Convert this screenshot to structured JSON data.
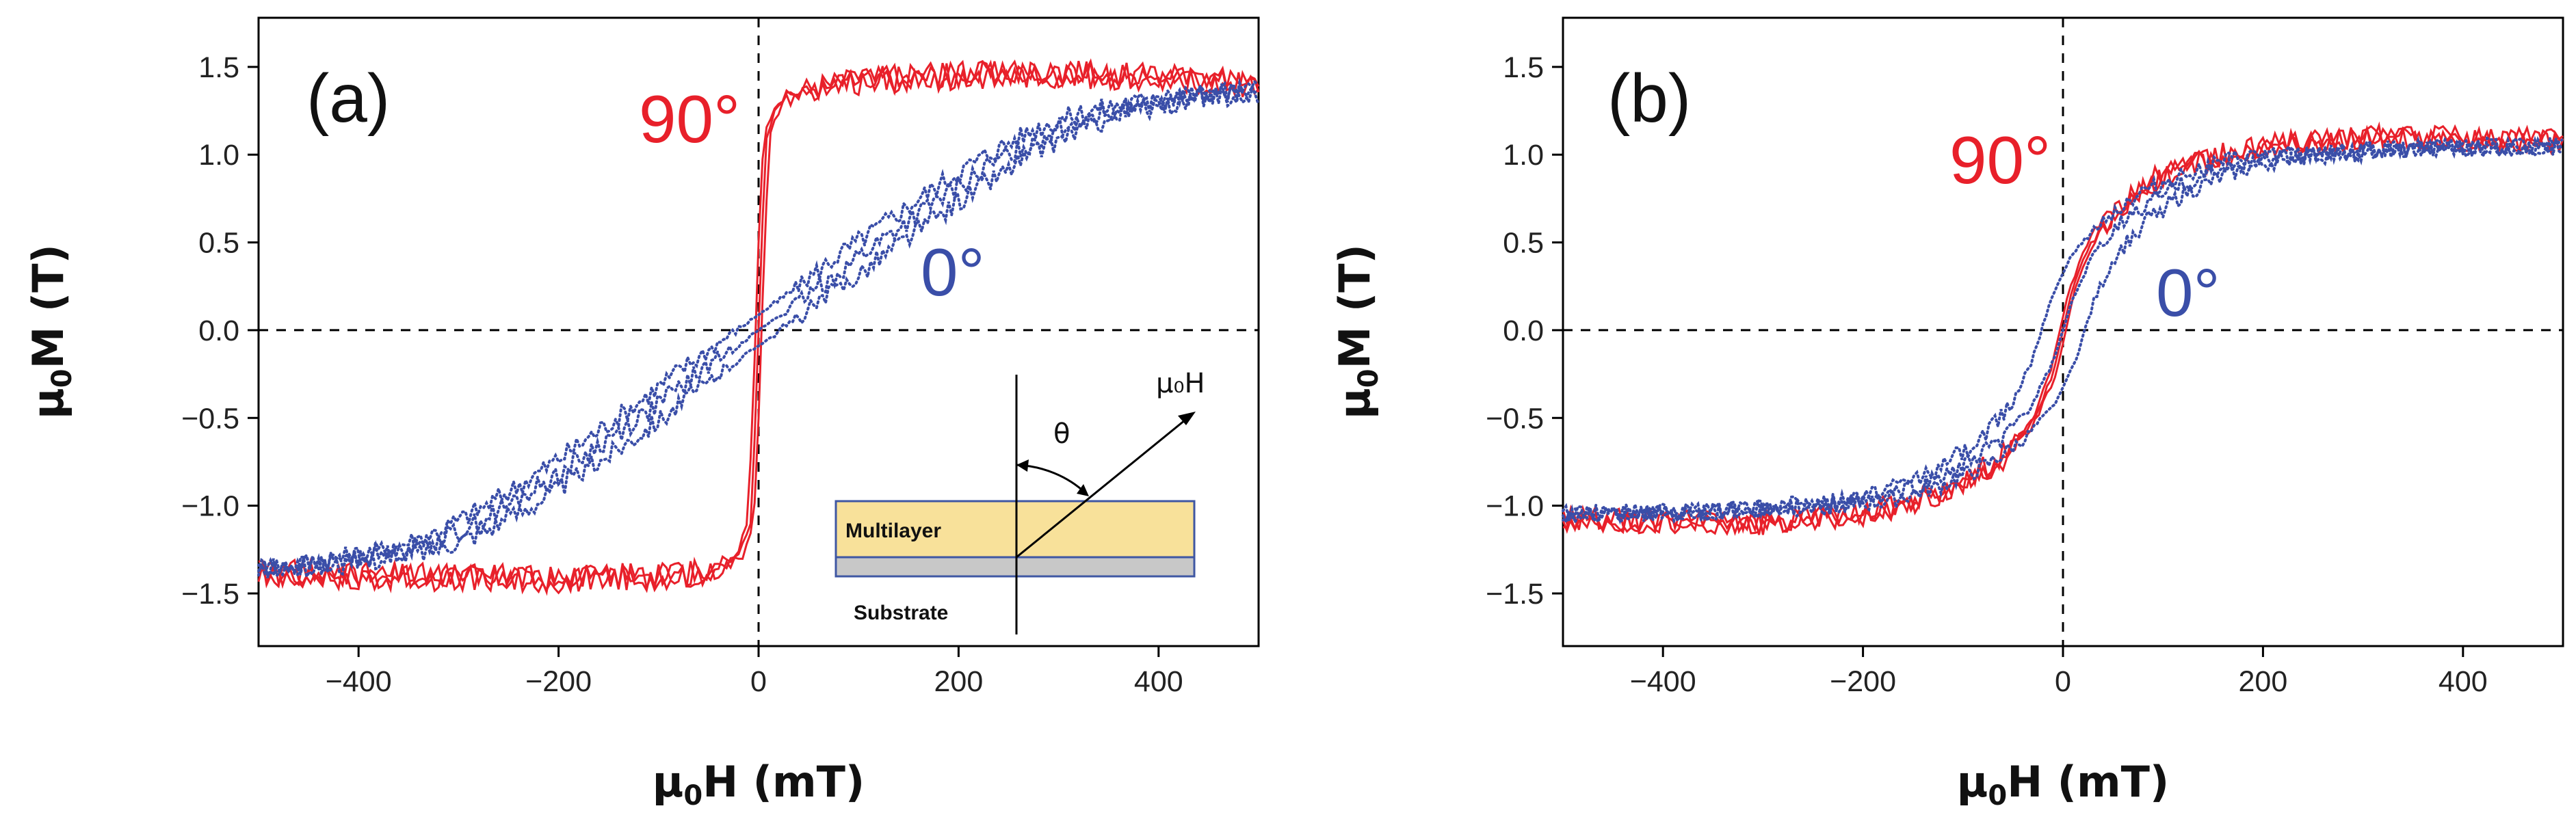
{
  "colors": {
    "red": "#e8202a",
    "blue": "#3a4ea8",
    "layer": "#f8e19a",
    "substrate": "#c8c8c8"
  },
  "chart_data": [
    {
      "type": "line",
      "panel": "(a)",
      "xlabel": "μ0H (mT)",
      "ylabel": "μ0M (T)",
      "xlim": [
        -500,
        500
      ],
      "ylim": [
        -1.8,
        1.78
      ],
      "xticks": [
        -400,
        -200,
        0,
        200,
        400
      ],
      "yticks": [
        -1.5,
        -1.0,
        -0.5,
        0.0,
        0.5,
        1.0,
        1.5
      ],
      "xtick_labels": [
        "−400",
        "−200",
        "0",
        "200",
        "400"
      ],
      "ytick_labels": [
        "−1.5",
        "−1.0",
        "−0.5",
        "0.0",
        "0.5",
        "1.0",
        "1.5"
      ],
      "series": [
        {
          "name": "90°",
          "style": "line",
          "x": [
            -500,
            -400,
            -300,
            -200,
            -100,
            -50,
            -20,
            -8,
            -3,
            0,
            3,
            8,
            20,
            50,
            100,
            200,
            300,
            400,
            500
          ],
          "y": [
            -1.38,
            -1.4,
            -1.41,
            -1.42,
            -1.4,
            -1.38,
            -1.3,
            -1.1,
            -0.5,
            0.0,
            0.5,
            1.1,
            1.3,
            1.38,
            1.42,
            1.45,
            1.46,
            1.44,
            1.4
          ]
        },
        {
          "name": "0°",
          "style": "dots",
          "x": [
            -500,
            -450,
            -400,
            -350,
            -300,
            -250,
            -200,
            -150,
            -100,
            -50,
            0,
            50,
            100,
            150,
            200,
            250,
            300,
            350,
            400,
            450,
            500
          ],
          "y": [
            -1.36,
            -1.34,
            -1.3,
            -1.25,
            -1.15,
            -1.0,
            -0.82,
            -0.62,
            -0.42,
            -0.2,
            0.0,
            0.2,
            0.42,
            0.62,
            0.82,
            1.0,
            1.15,
            1.25,
            1.3,
            1.34,
            1.36
          ]
        }
      ],
      "annotations": [
        {
          "text": "90°",
          "color": "red"
        },
        {
          "text": "0°",
          "color": "blue"
        }
      ],
      "inset": {
        "layer_label": "Multilayer",
        "substrate_label": "Substrate",
        "angle_label": "θ",
        "field_label": "μ₀H"
      }
    },
    {
      "type": "line",
      "panel": "(b)",
      "xlabel": "μ0H (mT)",
      "ylabel": "μ0M (T)",
      "xlim": [
        -500,
        500
      ],
      "ylim": [
        -1.8,
        1.78
      ],
      "xticks": [
        -400,
        -200,
        0,
        200,
        400
      ],
      "yticks": [
        -1.5,
        -1.0,
        -0.5,
        0.0,
        0.5,
        1.0,
        1.5
      ],
      "xtick_labels": [
        "−400",
        "−200",
        "0",
        "200",
        "400"
      ],
      "ytick_labels": [
        "−1.5",
        "−1.0",
        "−0.5",
        "0.0",
        "0.5",
        "1.0",
        "1.5"
      ],
      "series": [
        {
          "name": "90°",
          "style": "line",
          "x": [
            -500,
            -400,
            -300,
            -200,
            -150,
            -100,
            -60,
            -30,
            -10,
            0,
            10,
            30,
            60,
            100,
            150,
            200,
            300,
            400,
            500
          ],
          "y": [
            -1.08,
            -1.09,
            -1.1,
            -1.05,
            -0.98,
            -0.88,
            -0.72,
            -0.52,
            -0.25,
            0.0,
            0.25,
            0.52,
            0.72,
            0.88,
            0.98,
            1.05,
            1.1,
            1.09,
            1.08
          ]
        },
        {
          "name": "0°",
          "style": "dots",
          "x": [
            -500,
            -400,
            -300,
            -200,
            -150,
            -100,
            -60,
            -30,
            -10,
            0,
            10,
            30,
            60,
            100,
            150,
            200,
            300,
            400,
            500
          ],
          "y": [
            -1.05,
            -1.04,
            -1.02,
            -0.98,
            -0.9,
            -0.78,
            -0.62,
            -0.42,
            -0.18,
            0.0,
            0.18,
            0.42,
            0.62,
            0.78,
            0.9,
            0.98,
            1.02,
            1.04,
            1.05
          ]
        }
      ],
      "annotations": [
        {
          "text": "90°",
          "color": "red"
        },
        {
          "text": "0°",
          "color": "blue"
        }
      ]
    }
  ]
}
